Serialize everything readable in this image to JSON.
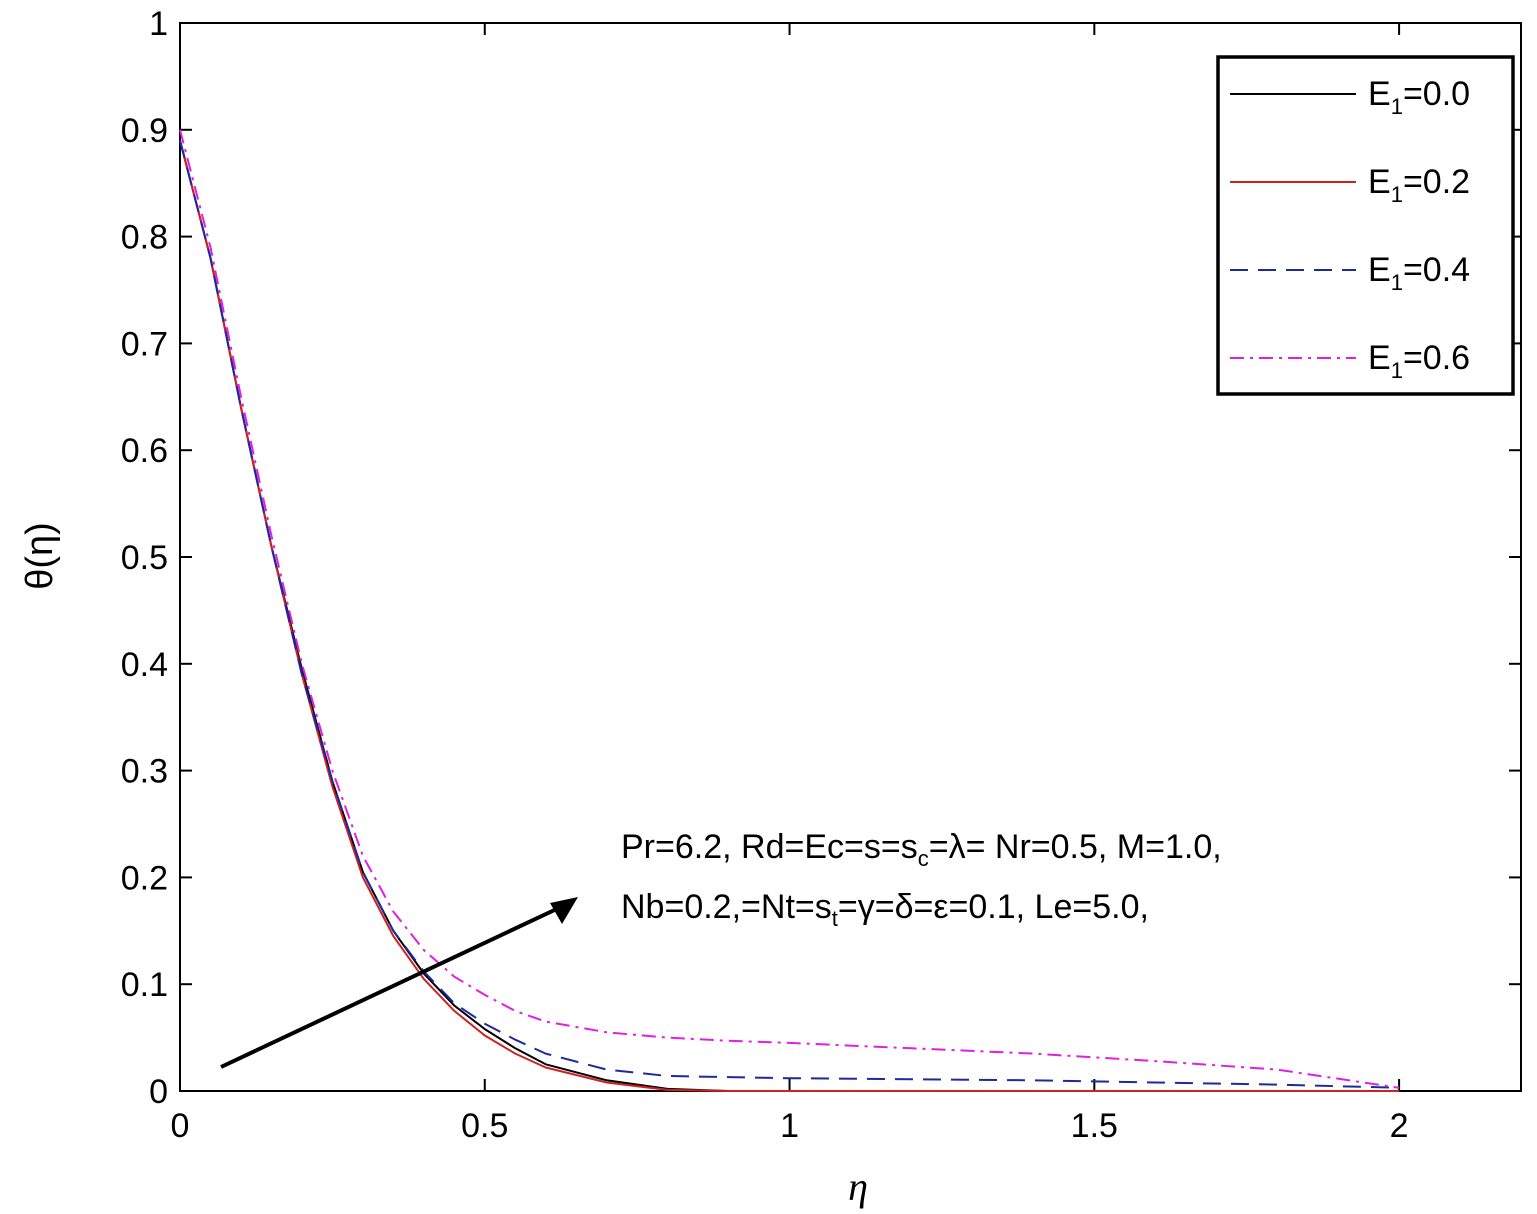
{
  "chart_data": {
    "type": "line",
    "title": "",
    "xlabel": "η",
    "ylabel": "θ(η)",
    "xlim": [
      0,
      2.2
    ],
    "ylim": [
      0,
      1
    ],
    "xticks": [
      0,
      0.5,
      1,
      1.5,
      2
    ],
    "xtick_labels": [
      "0",
      "0.5",
      "1",
      "1.5",
      "2"
    ],
    "yticks": [
      0,
      0.1,
      0.2,
      0.3,
      0.4,
      0.5,
      0.6,
      0.7,
      0.8,
      0.9,
      1
    ],
    "ytick_labels": [
      "0",
      "0.1",
      "0.2",
      "0.3",
      "0.4",
      "0.5",
      "0.6",
      "0.7",
      "0.8",
      "0.9",
      "1"
    ],
    "grid": false,
    "legend_position": "top-right",
    "x": [
      0,
      0.05,
      0.1,
      0.15,
      0.2,
      0.25,
      0.3,
      0.35,
      0.4,
      0.45,
      0.5,
      0.55,
      0.6,
      0.7,
      0.8,
      0.9,
      1.0,
      1.2,
      1.4,
      1.6,
      1.8,
      2.0
    ],
    "series": [
      {
        "legend_base": "E",
        "legend_sub": "1",
        "legend_value": "=0.0",
        "color": "#000000",
        "dash": "",
        "values": [
          0.89,
          0.78,
          0.64,
          0.51,
          0.395,
          0.29,
          0.205,
          0.15,
          0.11,
          0.08,
          0.058,
          0.04,
          0.025,
          0.01,
          0.002,
          0.0,
          0.0,
          0.0,
          0.0,
          0.0,
          0.0,
          0.0
        ]
      },
      {
        "legend_base": "E",
        "legend_sub": "1",
        "legend_value": "=0.2",
        "color": "#cc2222",
        "dash": "",
        "values": [
          0.89,
          0.78,
          0.64,
          0.51,
          0.39,
          0.285,
          0.2,
          0.145,
          0.105,
          0.075,
          0.052,
          0.035,
          0.022,
          0.008,
          0.001,
          0.0,
          0.0,
          0.0,
          0.0,
          0.0,
          0.0,
          0.0
        ]
      },
      {
        "legend_base": "E",
        "legend_sub": "1",
        "legend_value": "=0.4",
        "color": "#1c2aa0",
        "dash": "18,10",
        "values": [
          0.89,
          0.78,
          0.64,
          0.51,
          0.39,
          0.29,
          0.205,
          0.15,
          0.112,
          0.082,
          0.063,
          0.048,
          0.035,
          0.02,
          0.014,
          0.013,
          0.012,
          0.011,
          0.01,
          0.008,
          0.006,
          0.003
        ]
      },
      {
        "legend_base": "E",
        "legend_sub": "1",
        "legend_value": "=0.6",
        "color": "#e020e0",
        "dash": "14,6,3,6",
        "values": [
          0.9,
          0.79,
          0.65,
          0.52,
          0.4,
          0.3,
          0.22,
          0.168,
          0.132,
          0.107,
          0.09,
          0.075,
          0.065,
          0.055,
          0.05,
          0.047,
          0.045,
          0.04,
          0.035,
          0.028,
          0.02,
          0.003
        ]
      }
    ],
    "annotation": {
      "line1": {
        "a": "Pr=6.2, Rd=Ec=s=s",
        "a_sub": "c",
        "b": "=λ= Nr=0.5, M=1.0,"
      },
      "line2": {
        "a": "Nb=0.2,=Nt=s",
        "a_sub": "t",
        "b": "=γ=δ=ε=0.1, Le=5.0,"
      }
    }
  }
}
